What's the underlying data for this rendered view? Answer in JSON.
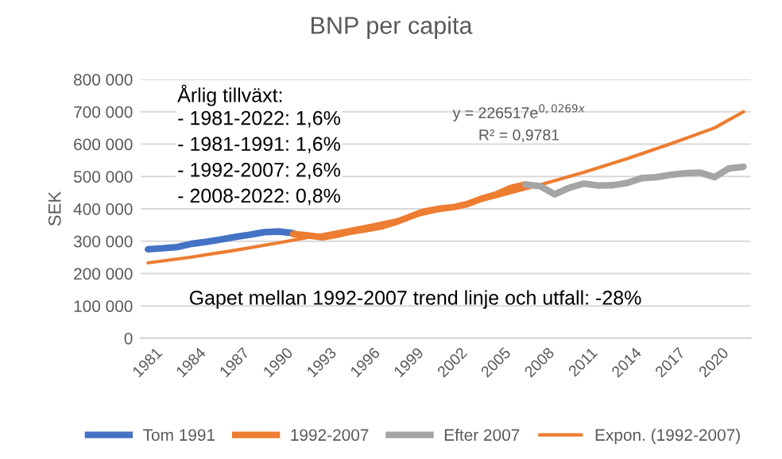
{
  "chart_data": {
    "type": "line",
    "title": "BNP per capita",
    "ylabel": "SEK",
    "xlim": [
      1980.5,
      2022.5
    ],
    "xticks": [
      1981,
      1984,
      1987,
      1990,
      1993,
      1996,
      1999,
      2002,
      2005,
      2008,
      2011,
      2014,
      2017,
      2020
    ],
    "ylim": [
      0,
      800000
    ],
    "yticks": [
      {
        "value": 0,
        "label": "0"
      },
      {
        "value": 100000,
        "label": "100 000"
      },
      {
        "value": 200000,
        "label": "200 000"
      },
      {
        "value": 300000,
        "label": "300 000"
      },
      {
        "value": 400000,
        "label": "400 000"
      },
      {
        "value": 500000,
        "label": "500 000"
      },
      {
        "value": 600000,
        "label": "600 000"
      },
      {
        "value": 700000,
        "label": "700 000"
      },
      {
        "value": 800000,
        "label": "800 000"
      }
    ],
    "grid": "y",
    "legend": "bottom",
    "marker": "none",
    "line_style": "solid",
    "series": [
      {
        "name": "Tom 1991",
        "color": "#4472c4",
        "x": [
          1981,
          1982,
          1983,
          1984,
          1985,
          1986,
          1987,
          1988,
          1989,
          1990,
          1991
        ],
        "values": [
          275000,
          278000,
          282000,
          292000,
          298000,
          305000,
          313000,
          320000,
          328000,
          330000,
          325000
        ]
      },
      {
        "name": "1992-2007",
        "color": "#ed7d31",
        "x": [
          1991,
          1992,
          1993,
          1994,
          1995,
          1996,
          1997,
          1998,
          1999,
          2000,
          2001,
          2002,
          2003,
          2004,
          2005,
          2006,
          2007
        ],
        "values": [
          322000,
          318000,
          312000,
          320000,
          330000,
          337000,
          345000,
          358000,
          375000,
          392000,
          400000,
          405000,
          415000,
          432000,
          445000,
          465000,
          475000
        ]
      },
      {
        "name": "Efter 2007",
        "color": "#a5a5a5",
        "x": [
          2007,
          2008,
          2009,
          2010,
          2011,
          2012,
          2013,
          2014,
          2015,
          2016,
          2017,
          2018,
          2019,
          2020,
          2021,
          2022
        ],
        "values": [
          475000,
          470000,
          445000,
          465000,
          478000,
          472000,
          473000,
          480000,
          495000,
          498000,
          505000,
          510000,
          512000,
          498000,
          525000,
          530000
        ]
      },
      {
        "name": "Expon. (1992-2007)",
        "color": "#ed7d31",
        "x": [
          1981,
          1984,
          1987,
          1990,
          1993,
          1996,
          1999,
          2002,
          2005,
          2008,
          2011,
          2014,
          2017,
          2020,
          2022
        ],
        "values": [
          233000,
          251000,
          272000,
          295000,
          320000,
          346000,
          374000,
          405000,
          438000,
          474000,
          513000,
          555000,
          601000,
          650000,
          700000
        ]
      }
    ],
    "annotations": [
      "Årlig tillväxt:",
      "- 1981-2022: 1,6%",
      "- 1981-1991: 1,6%",
      "- 1992-2007: 2,6%",
      "- 2008-2022: 0,8%",
      "y = 226517e$^{0,0269x}$",
      "R² = 0,9781",
      "Gapet mellan 1992-2007 trend linje och utfall: -28%"
    ]
  }
}
